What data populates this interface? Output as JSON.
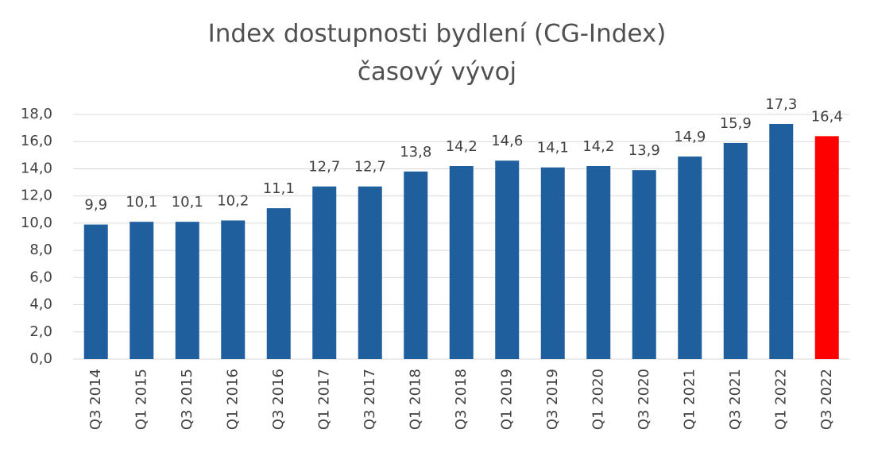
{
  "chart_data": {
    "type": "bar",
    "title": [
      "Index dostupnosti bydlení (CG-Index)",
      "časový vývoj"
    ],
    "categories": [
      "Q3 2014",
      "Q1 2015",
      "Q3 2015",
      "Q1 2016",
      "Q3 2016",
      "Q1 2017",
      "Q3 2017",
      "Q1 2018",
      "Q3 2018",
      "Q1 2019",
      "Q3 2019",
      "Q1 2020",
      "Q3 2020",
      "Q1 2021",
      "Q3 2021",
      "Q1 2022",
      "Q3 2022"
    ],
    "values": [
      9.9,
      10.1,
      10.1,
      10.2,
      11.1,
      12.7,
      12.7,
      13.8,
      14.2,
      14.6,
      14.1,
      14.2,
      13.9,
      14.9,
      15.9,
      17.3,
      16.4
    ],
    "value_labels": [
      "9,9",
      "10,1",
      "10,1",
      "10,2",
      "11,1",
      "12,7",
      "12,7",
      "13,8",
      "14,2",
      "14,6",
      "14,1",
      "14,2",
      "13,9",
      "14,9",
      "15,9",
      "17,3",
      "16,4"
    ],
    "colors": [
      "#1f5f9e",
      "#1f5f9e",
      "#1f5f9e",
      "#1f5f9e",
      "#1f5f9e",
      "#1f5f9e",
      "#1f5f9e",
      "#1f5f9e",
      "#1f5f9e",
      "#1f5f9e",
      "#1f5f9e",
      "#1f5f9e",
      "#1f5f9e",
      "#1f5f9e",
      "#1f5f9e",
      "#1f5f9e",
      "#ff0000"
    ],
    "ylim": [
      0,
      18
    ],
    "yticks": [
      {
        "value": 0,
        "label": "0,0"
      },
      {
        "value": 2,
        "label": "2,0"
      },
      {
        "value": 4,
        "label": "4,0"
      },
      {
        "value": 6,
        "label": "6,0"
      },
      {
        "value": 8,
        "label": "8,0"
      },
      {
        "value": 10,
        "label": "10,0"
      },
      {
        "value": 12,
        "label": "12,0"
      },
      {
        "value": 14,
        "label": "14,0"
      },
      {
        "value": 16,
        "label": "16,0"
      },
      {
        "value": 18,
        "label": "18,0"
      }
    ],
    "grid": true
  }
}
